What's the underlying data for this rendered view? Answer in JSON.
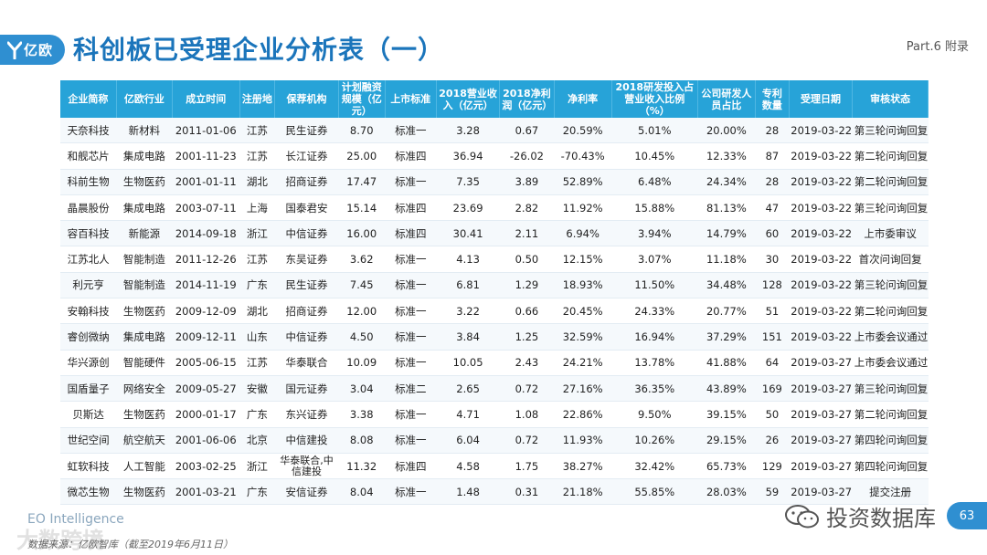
{
  "logo_text": "亿欧",
  "title": "科创板已受理企业分析表（一）",
  "part_label": "Part.6 附录",
  "columns": [
    "企业简称",
    "亿欧行业",
    "成立时间",
    "注册地",
    "保荐机构",
    "计划融资规模（亿元）",
    "上市标准",
    "2018营业收入（亿元）",
    "2018净利润（亿元）",
    "净利率",
    "2018研发投入占营业收入比例（%）",
    "公司研发人员占比",
    "专利数量",
    "受理日期",
    "审核状态"
  ],
  "rows": [
    [
      "天奈科技",
      "新材料",
      "2011-01-06",
      "江苏",
      "民生证券",
      "8.70",
      "标准一",
      "3.28",
      "0.67",
      "20.59%",
      "5.01%",
      "20.00%",
      "28",
      "2019-03-22",
      "第三轮问询回复"
    ],
    [
      "和舰芯片",
      "集成电路",
      "2001-11-23",
      "江苏",
      "长江证券",
      "25.00",
      "标准四",
      "36.94",
      "-26.02",
      "-70.43%",
      "10.45%",
      "12.33%",
      "87",
      "2019-03-22",
      "第二轮问询回复"
    ],
    [
      "科前生物",
      "生物医药",
      "2001-01-11",
      "湖北",
      "招商证券",
      "17.47",
      "标准一",
      "7.35",
      "3.89",
      "52.89%",
      "6.48%",
      "24.34%",
      "28",
      "2019-03-22",
      "第二轮问询回复"
    ],
    [
      "晶晨股份",
      "集成电路",
      "2003-07-11",
      "上海",
      "国泰君安",
      "15.14",
      "标准四",
      "23.69",
      "2.82",
      "11.92%",
      "15.88%",
      "81.13%",
      "47",
      "2019-03-22",
      "第三轮问询回复"
    ],
    [
      "容百科技",
      "新能源",
      "2014-09-18",
      "浙江",
      "中信证券",
      "16.00",
      "标准四",
      "30.41",
      "2.11",
      "6.94%",
      "3.94%",
      "14.79%",
      "60",
      "2019-03-22",
      "上市委审议"
    ],
    [
      "江苏北人",
      "智能制造",
      "2011-12-26",
      "江苏",
      "东吴证券",
      "3.62",
      "标准一",
      "4.13",
      "0.50",
      "12.15%",
      "3.07%",
      "11.18%",
      "30",
      "2019-03-22",
      "首次问询回复"
    ],
    [
      "利元亨",
      "智能制造",
      "2014-11-19",
      "广东",
      "民生证券",
      "7.45",
      "标准一",
      "6.81",
      "1.29",
      "18.93%",
      "11.50%",
      "34.48%",
      "128",
      "2019-03-22",
      "第三轮问询回复"
    ],
    [
      "安翰科技",
      "生物医药",
      "2009-12-09",
      "湖北",
      "招商证券",
      "12.00",
      "标准一",
      "3.22",
      "0.66",
      "20.45%",
      "24.33%",
      "20.77%",
      "51",
      "2019-03-22",
      "第二轮问询回复"
    ],
    [
      "睿创微纳",
      "集成电路",
      "2009-12-11",
      "山东",
      "中信证券",
      "4.50",
      "标准一",
      "3.84",
      "1.25",
      "32.59%",
      "16.94%",
      "37.29%",
      "151",
      "2019-03-22",
      "上市委会议通过"
    ],
    [
      "华兴源创",
      "智能硬件",
      "2005-06-15",
      "江苏",
      "华泰联合",
      "10.09",
      "标准一",
      "10.05",
      "2.43",
      "24.21%",
      "13.78%",
      "41.88%",
      "64",
      "2019-03-27",
      "上市委会议通过"
    ],
    [
      "国盾量子",
      "网络安全",
      "2009-05-27",
      "安徽",
      "国元证券",
      "3.04",
      "标准二",
      "2.65",
      "0.72",
      "27.16%",
      "36.35%",
      "43.89%",
      "169",
      "2019-03-27",
      "第三轮问询回复"
    ],
    [
      "贝斯达",
      "生物医药",
      "2000-01-17",
      "广东",
      "东兴证券",
      "3.38",
      "标准一",
      "4.71",
      "1.08",
      "22.86%",
      "9.50%",
      "39.15%",
      "50",
      "2019-03-27",
      "第二轮问询回复"
    ],
    [
      "世纪空间",
      "航空航天",
      "2001-06-06",
      "北京",
      "中信建投",
      "8.08",
      "标准一",
      "6.04",
      "0.72",
      "11.93%",
      "10.26%",
      "29.15%",
      "26",
      "2019-03-27",
      "第四轮问询回复"
    ],
    [
      "虹软科技",
      "人工智能",
      "2003-02-25",
      "浙江",
      "华泰联合,中信建投",
      "11.32",
      "标准四",
      "4.58",
      "1.75",
      "38.27%",
      "32.42%",
      "65.73%",
      "129",
      "2019-03-27",
      "第四轮问询回复"
    ],
    [
      "微芯生物",
      "生物医药",
      "2001-03-21",
      "广东",
      "安信证券",
      "8.04",
      "标准一",
      "1.48",
      "0.31",
      "21.18%",
      "55.85%",
      "28.03%",
      "59",
      "2019-03-27",
      "提交注册"
    ]
  ],
  "eo_label": "EO Intelligence",
  "source": "数据来源：亿欧智库（截至2019年6月11日）",
  "watermark_left": "大数跨境",
  "watermark_right": "投资数据库",
  "page_number": "63",
  "icons": [
    "logo-mark-icon",
    "wechat-icon"
  ],
  "colors": {
    "brand": "#2f8fd1",
    "header": "#27a3d8",
    "title": "#1b75bb"
  }
}
